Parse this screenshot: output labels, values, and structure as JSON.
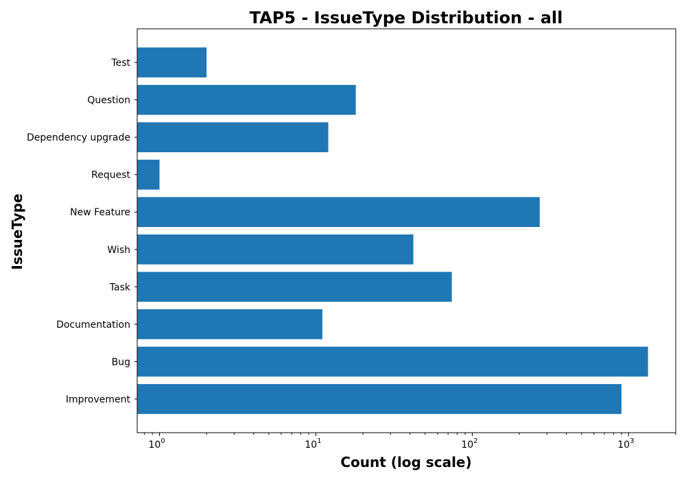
{
  "chart_data": {
    "type": "bar",
    "orientation": "horizontal",
    "title": "TAP5 - IssueType Distribution - all",
    "xlabel": "Count (log scale)",
    "ylabel": "IssueType",
    "x_scale": "log",
    "xlim": [
      0.72,
      2000
    ],
    "x_ticks": [
      {
        "base": "10",
        "exp": "0",
        "value": 1
      },
      {
        "base": "10",
        "exp": "1",
        "value": 10
      },
      {
        "base": "10",
        "exp": "2",
        "value": 100
      },
      {
        "base": "10",
        "exp": "3",
        "value": 1000
      }
    ],
    "categories": [
      "Improvement",
      "Bug",
      "Documentation",
      "Task",
      "Wish",
      "New Feature",
      "Request",
      "Dependency upgrade",
      "Question",
      "Test"
    ],
    "values": [
      900,
      1330,
      11,
      74,
      42,
      270,
      1,
      12,
      18,
      2
    ],
    "bar_color": "#1f77b4",
    "grid": false,
    "legend": "none"
  }
}
